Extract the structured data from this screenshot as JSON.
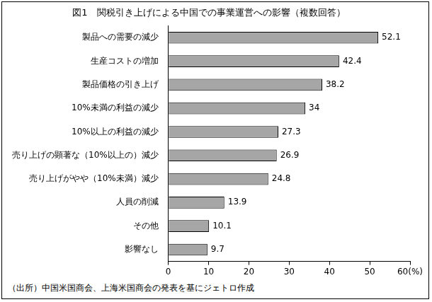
{
  "chart_data": {
    "type": "bar",
    "orientation": "horizontal",
    "title": "図1　関税引き上げによる中国での事業運営への影響（複数回答）",
    "note": "（出所）中国米国商会、上海米国商会の発表を基にジェトロ作成",
    "categories": [
      "製品への需要の減少",
      "生産コストの増加",
      "製品価格の引き上げ",
      "10%未満の利益の減少",
      "10%以上の利益の減少",
      "売り上げの顕著な（10%以上の）減少",
      "売り上げがやや（10%未満）減少",
      "人員の削減",
      "その他",
      "影響なし"
    ],
    "values": [
      52.1,
      42.4,
      38.2,
      34,
      27.3,
      26.9,
      24.8,
      13.9,
      10.1,
      9.7
    ],
    "color": "#a6a6a6",
    "xlim": [
      0,
      60
    ],
    "xticks": [
      0,
      10,
      20,
      30,
      40,
      50,
      {
        "value": 60,
        "label": "60(%)"
      }
    ],
    "grid": false,
    "data_labels": true
  }
}
